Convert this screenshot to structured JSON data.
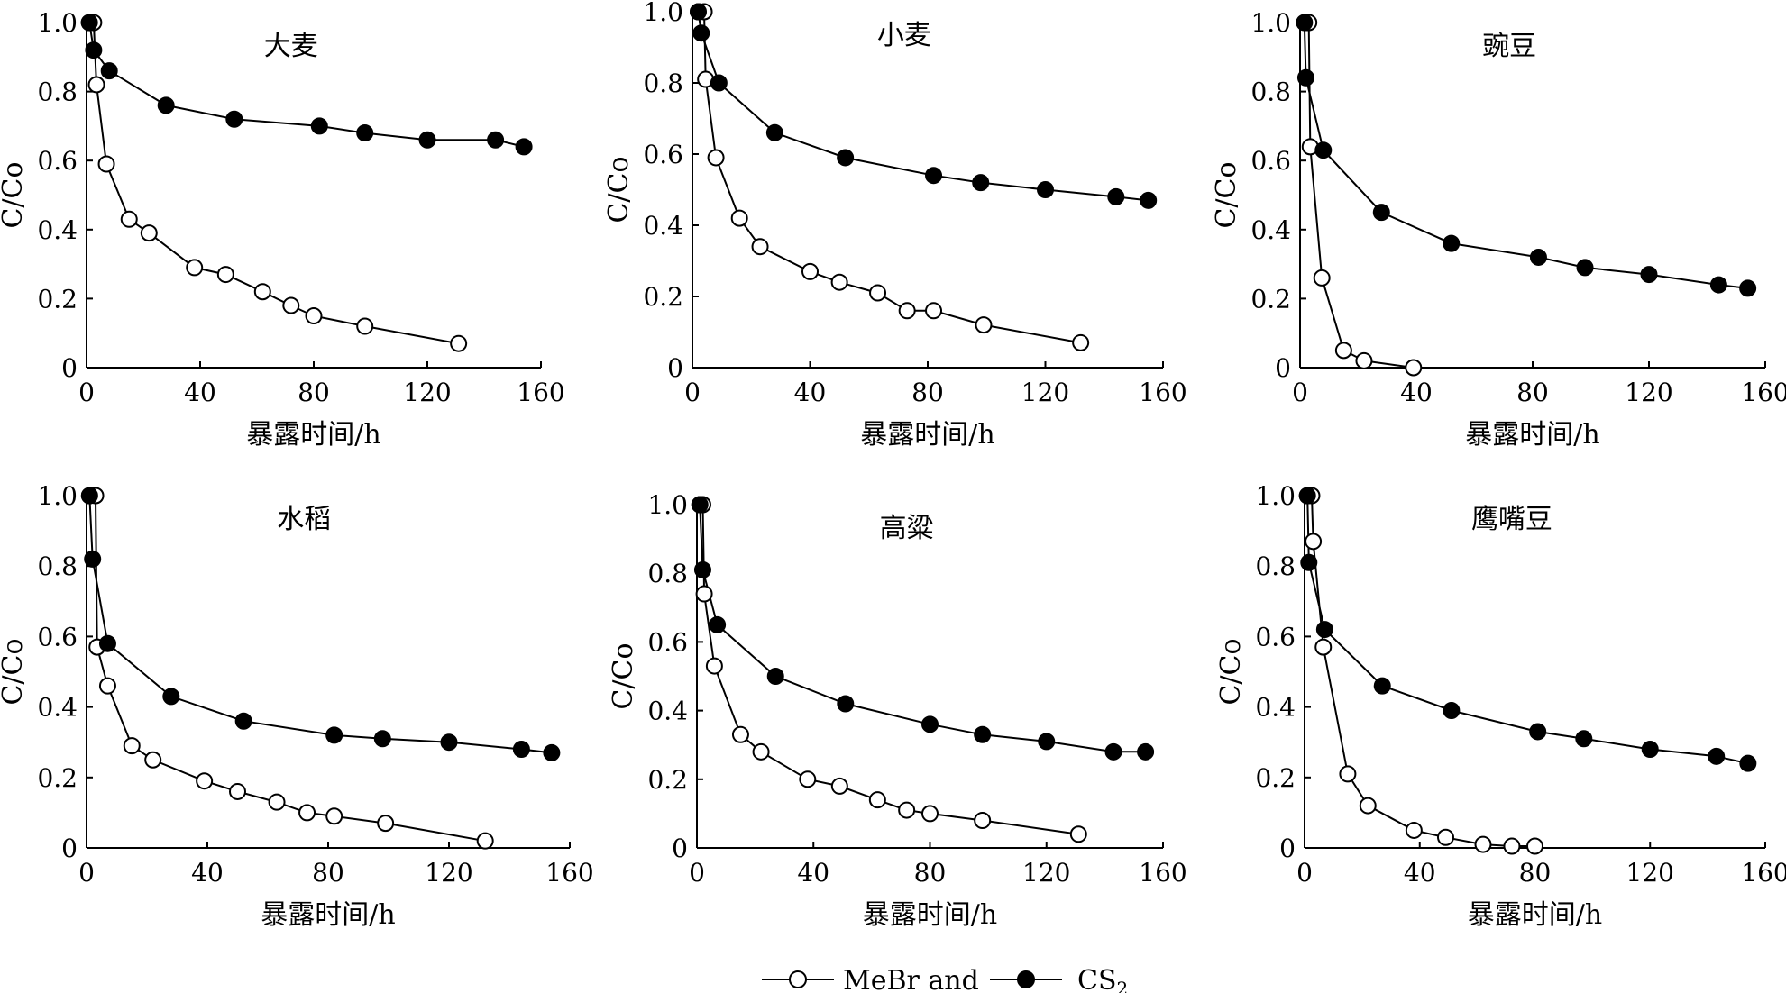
{
  "legend": {
    "mebr_label": "MeBr and",
    "cs2_label": "CS",
    "cs2_sub": "2"
  },
  "colors": {
    "line": "#000000",
    "open_fill": "#ffffff",
    "filled": "#000000"
  },
  "chart_data": [
    {
      "type": "line",
      "title": "大麦",
      "xlabel": "暴露时间/h",
      "ylabel": "C/Co",
      "xlim": [
        0,
        160
      ],
      "ylim": [
        0,
        1.0
      ],
      "xticks": [
        0,
        40,
        80,
        120,
        160
      ],
      "yticks": [
        0,
        0.2,
        0.4,
        0.6,
        0.8,
        1.0
      ],
      "series": [
        {
          "name": "MeBr",
          "marker": "open",
          "x": [
            1,
            2.5,
            3.5,
            7,
            15,
            22,
            38,
            49,
            62,
            72,
            80,
            98,
            131
          ],
          "y": [
            1.0,
            1.0,
            0.82,
            0.59,
            0.43,
            0.39,
            0.29,
            0.27,
            0.22,
            0.18,
            0.15,
            0.12,
            0.07
          ]
        },
        {
          "name": "CS2",
          "marker": "filled",
          "x": [
            1,
            2.5,
            8,
            28,
            52,
            82,
            98,
            120,
            144,
            154
          ],
          "y": [
            1.0,
            0.92,
            0.86,
            0.76,
            0.72,
            0.7,
            0.68,
            0.66,
            0.66,
            0.64
          ]
        }
      ]
    },
    {
      "type": "line",
      "title": "小麦",
      "xlabel": "暴露时间/h",
      "ylabel": "C/Co",
      "xlim": [
        0,
        160
      ],
      "ylim": [
        0,
        1.0
      ],
      "xticks": [
        0,
        40,
        80,
        120,
        160
      ],
      "yticks": [
        0,
        0.2,
        0.4,
        0.6,
        0.8,
        1.0
      ],
      "series": [
        {
          "name": "MeBr",
          "marker": "open",
          "x": [
            2,
            4,
            4.5,
            8,
            16,
            23,
            40,
            50,
            63,
            73,
            82,
            99,
            132
          ],
          "y": [
            1.0,
            1.0,
            0.81,
            0.59,
            0.42,
            0.34,
            0.27,
            0.24,
            0.21,
            0.16,
            0.16,
            0.12,
            0.07
          ]
        },
        {
          "name": "CS2",
          "marker": "filled",
          "x": [
            2,
            3,
            9,
            28,
            52,
            82,
            98,
            120,
            144,
            155
          ],
          "y": [
            1.0,
            0.94,
            0.8,
            0.66,
            0.59,
            0.54,
            0.52,
            0.5,
            0.48,
            0.47
          ]
        }
      ]
    },
    {
      "type": "line",
      "title": "豌豆",
      "xlabel": "暴露时间/h",
      "ylabel": "C/Co",
      "xlim": [
        0,
        160
      ],
      "ylim": [
        0,
        1.0
      ],
      "xticks": [
        0,
        40,
        80,
        120,
        160
      ],
      "yticks": [
        0,
        0.2,
        0.4,
        0.6,
        0.8,
        1.0
      ],
      "series": [
        {
          "name": "MeBr",
          "marker": "open",
          "x": [
            2,
            3,
            3.5,
            7.5,
            15,
            22,
            39
          ],
          "y": [
            1.0,
            1.0,
            0.64,
            0.26,
            0.05,
            0.02,
            0.0
          ]
        },
        {
          "name": "CS2",
          "marker": "filled",
          "x": [
            1.5,
            2,
            8,
            28,
            52,
            82,
            98,
            120,
            144,
            154
          ],
          "y": [
            1.0,
            0.84,
            0.63,
            0.45,
            0.36,
            0.32,
            0.29,
            0.27,
            0.24,
            0.23
          ]
        }
      ]
    },
    {
      "type": "line",
      "title": "水稻",
      "xlabel": "暴露时间/h",
      "ylabel": "C/Co",
      "xlim": [
        0,
        160
      ],
      "ylim": [
        0,
        1.0
      ],
      "xticks": [
        0,
        40,
        80,
        120,
        160
      ],
      "yticks": [
        0,
        0.2,
        0.4,
        0.6,
        0.8,
        1.0
      ],
      "series": [
        {
          "name": "MeBr",
          "marker": "open",
          "x": [
            1,
            3,
            3.5,
            7,
            15,
            22,
            39,
            50,
            63,
            73,
            82,
            99,
            132
          ],
          "y": [
            1.0,
            1.0,
            0.57,
            0.46,
            0.29,
            0.25,
            0.19,
            0.16,
            0.13,
            0.1,
            0.09,
            0.07,
            0.02
          ]
        },
        {
          "name": "CS2",
          "marker": "filled",
          "x": [
            1,
            2,
            7,
            28,
            52,
            82,
            98,
            120,
            144,
            154
          ],
          "y": [
            1.0,
            0.82,
            0.58,
            0.43,
            0.36,
            0.32,
            0.31,
            0.3,
            0.28,
            0.27
          ]
        }
      ]
    },
    {
      "type": "line",
      "title": "高粱",
      "xlabel": "暴露时间/h",
      "ylabel": "C/Co",
      "xlim": [
        0,
        160
      ],
      "ylim": [
        0,
        1.0
      ],
      "xticks": [
        0,
        40,
        80,
        120,
        160
      ],
      "yticks": [
        0,
        0.2,
        0.4,
        0.6,
        0.8,
        1.0
      ],
      "series": [
        {
          "name": "MeBr",
          "marker": "open",
          "x": [
            1,
            2,
            2.5,
            6,
            15,
            22,
            38,
            49,
            62,
            72,
            80,
            98,
            131
          ],
          "y": [
            1.0,
            1.0,
            0.74,
            0.53,
            0.33,
            0.28,
            0.2,
            0.18,
            0.14,
            0.11,
            0.1,
            0.08,
            0.04
          ]
        },
        {
          "name": "CS2",
          "marker": "filled",
          "x": [
            1,
            2,
            7,
            27,
            51,
            80,
            98,
            120,
            143,
            154
          ],
          "y": [
            1.0,
            0.81,
            0.65,
            0.5,
            0.42,
            0.36,
            0.33,
            0.31,
            0.28,
            0.28
          ]
        }
      ]
    },
    {
      "type": "line",
      "title": "鹰嘴豆",
      "xlabel": "暴露时间/h",
      "ylabel": "C/Co",
      "xlim": [
        0,
        160
      ],
      "ylim": [
        0,
        1.0
      ],
      "xticks": [
        0,
        40,
        80,
        120,
        160
      ],
      "yticks": [
        0,
        0.2,
        0.4,
        0.6,
        0.8,
        1.0
      ],
      "series": [
        {
          "name": "MeBr",
          "marker": "open",
          "x": [
            1,
            2.5,
            3,
            6.5,
            15,
            22,
            38,
            49,
            62,
            72,
            80
          ],
          "y": [
            1.0,
            1.0,
            0.87,
            0.57,
            0.21,
            0.12,
            0.05,
            0.03,
            0.01,
            0.005,
            0.005
          ]
        },
        {
          "name": "CS2",
          "marker": "filled",
          "x": [
            1,
            1.5,
            7,
            27,
            51,
            81,
            97,
            120,
            143,
            154
          ],
          "y": [
            1.0,
            0.81,
            0.62,
            0.46,
            0.39,
            0.33,
            0.31,
            0.28,
            0.26,
            0.24
          ]
        }
      ]
    }
  ]
}
